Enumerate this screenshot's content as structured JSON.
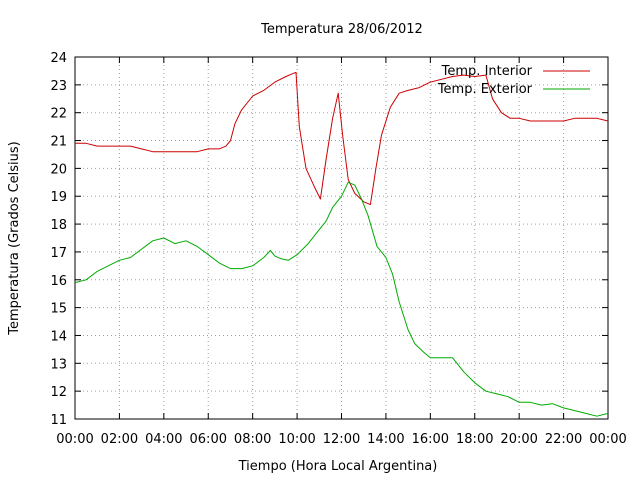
{
  "chart_data": {
    "type": "line",
    "title": "Temperatura 28/06/2012",
    "xlabel": "Tiempo (Hora Local Argentina)",
    "ylabel": "Temperatura (Grados Celsius)",
    "x_ticks": [
      "00:00",
      "02:00",
      "04:00",
      "06:00",
      "08:00",
      "10:00",
      "12:00",
      "14:00",
      "16:00",
      "18:00",
      "20:00",
      "22:00",
      "00:00"
    ],
    "y_ticks": [
      11,
      12,
      13,
      14,
      15,
      16,
      17,
      18,
      19,
      20,
      21,
      22,
      23,
      24
    ],
    "xlim_hours": [
      0,
      24
    ],
    "ylim": [
      11,
      24
    ],
    "grid": true,
    "legend_position": "top-right",
    "series": [
      {
        "name": "Temp. Interior",
        "color": "#cc0000",
        "x": [
          0,
          0.5,
          1,
          1.5,
          2,
          2.5,
          3,
          3.5,
          4,
          4.5,
          5,
          5.5,
          6,
          6.5,
          6.8,
          7,
          7.2,
          7.5,
          8,
          8.5,
          9,
          9.5,
          9.8,
          9.95,
          10.1,
          10.4,
          10.8,
          11.05,
          11.3,
          11.6,
          11.85,
          12.05,
          12.3,
          12.6,
          13.0,
          13.3,
          13.55,
          13.8,
          14.2,
          14.6,
          15,
          15.5,
          16,
          16.5,
          17,
          17.5,
          18,
          18.5,
          18.8,
          19.2,
          19.6,
          20,
          20.5,
          21,
          21.5,
          22,
          22.5,
          23,
          23.5,
          24
        ],
        "values": [
          20.9,
          20.9,
          20.8,
          20.8,
          20.8,
          20.8,
          20.7,
          20.6,
          20.6,
          20.6,
          20.6,
          20.6,
          20.7,
          20.7,
          20.8,
          21.0,
          21.6,
          22.1,
          22.6,
          22.8,
          23.1,
          23.3,
          23.4,
          23.45,
          21.5,
          20.0,
          19.3,
          18.9,
          20.3,
          21.8,
          22.7,
          21.2,
          19.6,
          19.1,
          18.8,
          18.7,
          20.0,
          21.2,
          22.2,
          22.7,
          22.8,
          22.9,
          23.1,
          23.2,
          23.3,
          23.35,
          23.3,
          23.35,
          22.5,
          22.0,
          21.8,
          21.8,
          21.7,
          21.7,
          21.7,
          21.7,
          21.8,
          21.8,
          21.8,
          21.7
        ]
      },
      {
        "name": "Temp. Exterior",
        "color": "#00aa00",
        "x": [
          0,
          0.5,
          1,
          1.5,
          2,
          2.5,
          3,
          3.5,
          4,
          4.5,
          5,
          5.5,
          6,
          6.5,
          7,
          7.5,
          8,
          8.5,
          8.8,
          9.0,
          9.3,
          9.6,
          10,
          10.5,
          11,
          11.3,
          11.6,
          12,
          12.3,
          12.6,
          12.9,
          13.2,
          13.6,
          14,
          14.3,
          14.6,
          15,
          15.3,
          15.7,
          16,
          16.5,
          17,
          17.5,
          18,
          18.5,
          19,
          19.5,
          20,
          20.5,
          21,
          21.5,
          22,
          22.5,
          23,
          23.5,
          24
        ],
        "values": [
          15.9,
          16.0,
          16.3,
          16.5,
          16.7,
          16.8,
          17.1,
          17.4,
          17.5,
          17.3,
          17.4,
          17.2,
          16.9,
          16.6,
          16.4,
          16.4,
          16.5,
          16.8,
          17.05,
          16.85,
          16.75,
          16.7,
          16.9,
          17.3,
          17.8,
          18.1,
          18.6,
          19.0,
          19.5,
          19.4,
          18.9,
          18.3,
          17.2,
          16.8,
          16.2,
          15.2,
          14.2,
          13.7,
          13.4,
          13.2,
          13.2,
          13.2,
          12.7,
          12.3,
          12.0,
          11.9,
          11.8,
          11.6,
          11.6,
          11.5,
          11.55,
          11.4,
          11.3,
          11.2,
          11.1,
          11.2
        ]
      }
    ]
  }
}
